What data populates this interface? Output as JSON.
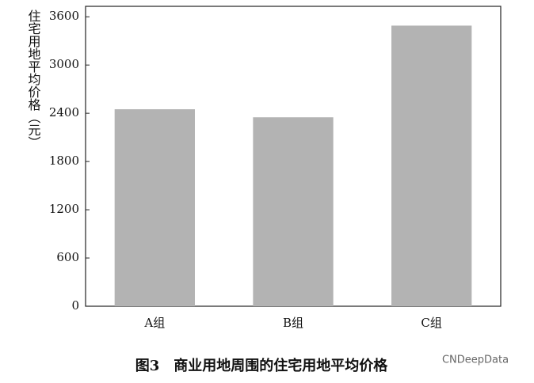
{
  "chart_data": {
    "type": "bar",
    "y_label": "住宅用地平均价格（元）",
    "categories": [
      "A组",
      "B组",
      "C组"
    ],
    "values": [
      2450,
      2350,
      3490
    ],
    "color": "#b3b3b3",
    "ylim": [
      0,
      3730
    ],
    "yticks": [
      0,
      600,
      1200,
      1800,
      2400,
      3000,
      3600
    ],
    "grid": false,
    "caption": "图3　商业用地周围的住宅用地平均价格",
    "watermark": "CNDeepData"
  }
}
